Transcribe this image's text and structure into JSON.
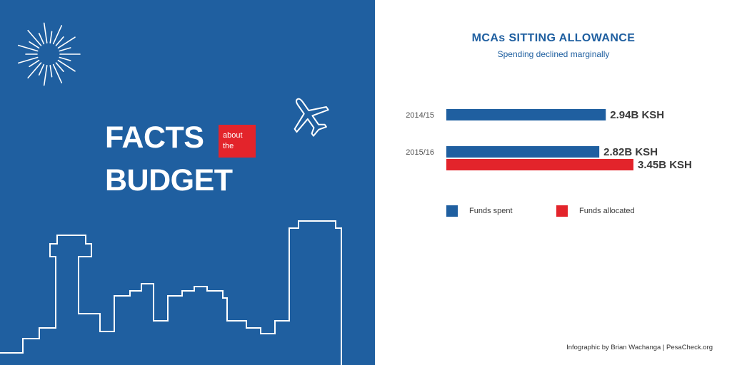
{
  "left": {
    "facts": "FACTS",
    "about_line1": "about",
    "about_line2": "the",
    "budget": "BUDGET"
  },
  "colors": {
    "brand_blue": "#1f5fa0",
    "accent_red": "#e3242b"
  },
  "icons": [
    "sunburst-icon",
    "airplane-icon",
    "city-skyline-illustration"
  ],
  "chart_data": {
    "type": "bar",
    "orientation": "horizontal",
    "title": "MCAs SITTING ALLOWANCE",
    "subtitle": "Spending declined marginally",
    "categories": [
      "2014/15",
      "2015/16"
    ],
    "series": [
      {
        "name": "Funds spent",
        "color": "#1f5fa0",
        "values": [
          2.94,
          2.82
        ],
        "labels": [
          "2.94B KSH",
          "2.82B KSH"
        ]
      },
      {
        "name": "Funds allocated",
        "color": "#e3242b",
        "values": [
          null,
          3.45
        ],
        "labels": [
          null,
          "3.45B KSH"
        ]
      }
    ],
    "unit": "B KSH",
    "legend_position": "bottom"
  },
  "credit": "Infographic by Brian Wachanga | PesaCheck.org"
}
